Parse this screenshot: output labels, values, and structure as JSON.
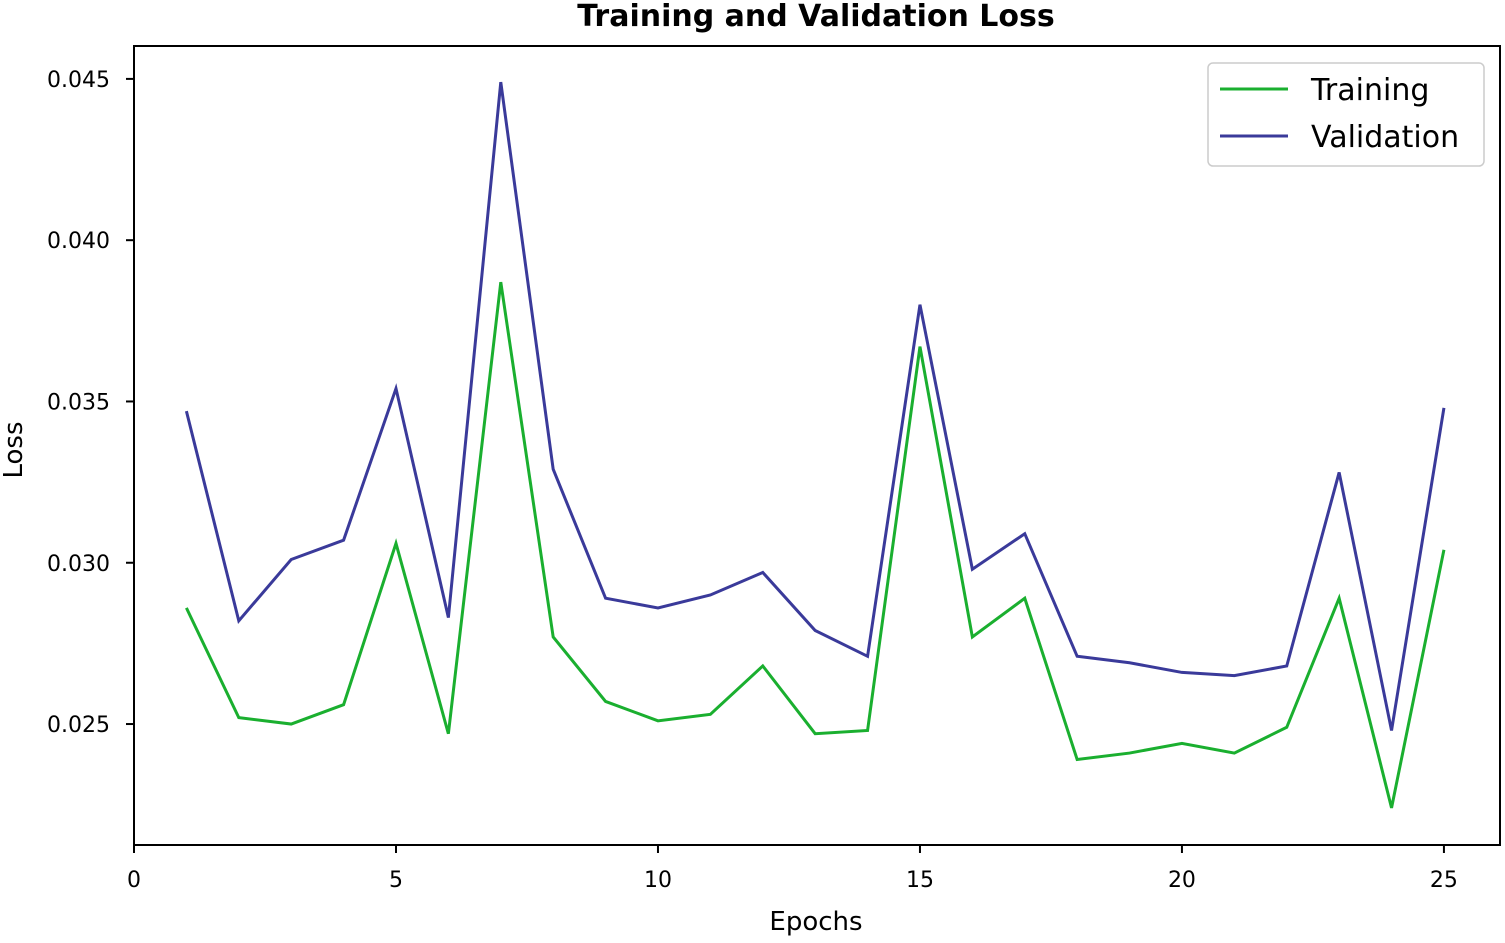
{
  "chart_data": {
    "type": "line",
    "title": "Training and Validation Loss",
    "xlabel": "Epochs",
    "ylabel": "Loss",
    "xlim": [
      0,
      26.07
    ],
    "ylim": [
      0.02125,
      0.04602
    ],
    "xticks": [
      0,
      5,
      10,
      15,
      20,
      25
    ],
    "yticks": [
      0.025,
      0.03,
      0.035,
      0.04,
      0.045
    ],
    "ytick_labels": [
      "0.025",
      "0.030",
      "0.035",
      "0.040",
      "0.045"
    ],
    "grid": false,
    "legend_position": "top-right",
    "x": [
      1,
      2,
      3,
      4,
      5,
      6,
      7,
      8,
      9,
      10,
      11,
      12,
      13,
      14,
      15,
      16,
      17,
      18,
      19,
      20,
      21,
      22,
      23,
      24,
      25
    ],
    "series": [
      {
        "name": "Training",
        "color": "#1aaf2f",
        "values": [
          0.0286,
          0.0252,
          0.025,
          0.0256,
          0.0306,
          0.0247,
          0.0387,
          0.0277,
          0.0257,
          0.0251,
          0.0253,
          0.0268,
          0.0247,
          0.0248,
          0.0367,
          0.0277,
          0.0289,
          0.0239,
          0.0241,
          0.0244,
          0.0241,
          0.0249,
          0.0289,
          0.0224,
          0.0304
        ]
      },
      {
        "name": "Validation",
        "color": "#3a3a9a",
        "values": [
          0.0347,
          0.0282,
          0.0301,
          0.0307,
          0.0354,
          0.0283,
          0.0449,
          0.0329,
          0.0289,
          0.0286,
          0.029,
          0.0297,
          0.0279,
          0.0271,
          0.038,
          0.0298,
          0.0309,
          0.0271,
          0.0269,
          0.0266,
          0.0265,
          0.0268,
          0.0328,
          0.0248,
          0.0348
        ]
      }
    ]
  }
}
